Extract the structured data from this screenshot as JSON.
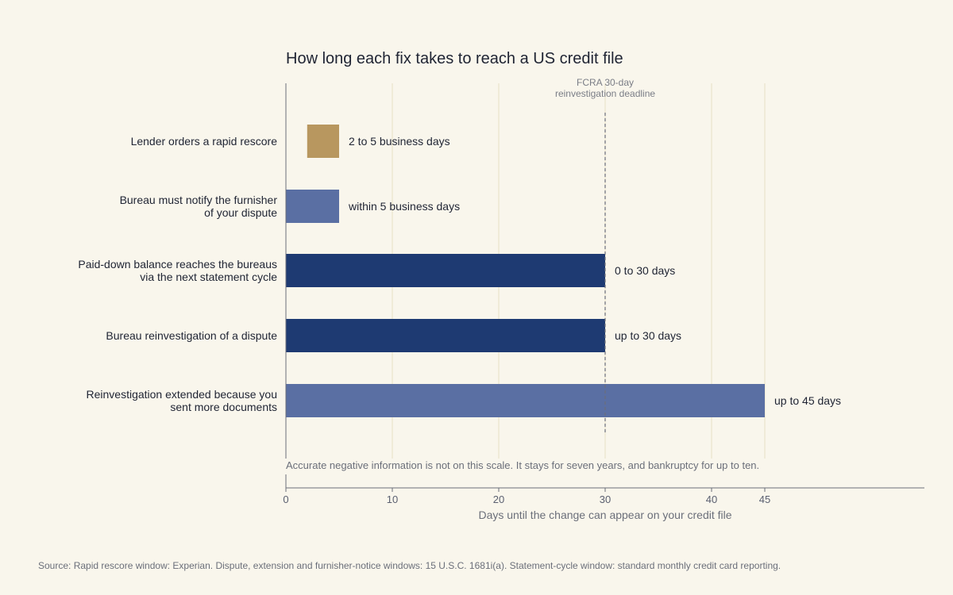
{
  "chart_data": {
    "type": "bar",
    "orientation": "horizontal",
    "title": "How long each fix takes to reach a US credit file",
    "xlabel": "Days until the change can appear on your credit file",
    "xlim": [
      0,
      60
    ],
    "xticks": [
      0,
      10,
      20,
      30,
      40,
      45
    ],
    "grid": true,
    "categories": [
      [
        "Lender orders a rapid rescore"
      ],
      [
        "Bureau must notify the furnisher",
        "of your dispute"
      ],
      [
        "Paid-down balance reaches the bureaus",
        "via the next statement cycle"
      ],
      [
        "Bureau reinvestigation of a dispute"
      ],
      [
        "Reinvestigation extended because you",
        "sent more documents"
      ]
    ],
    "ranges": [
      [
        2,
        5
      ],
      [
        0,
        5
      ],
      [
        0,
        30
      ],
      [
        0,
        30
      ],
      [
        0,
        45
      ]
    ],
    "value_labels": [
      "2 to 5 business days",
      "within 5 business days",
      "0 to 30 days",
      "up to 30 days",
      "up to 45 days"
    ],
    "bar_colors": [
      "#b8975f",
      "#5a6fa3",
      "#1e3a72",
      "#1e3a72",
      "#5a6fa3"
    ],
    "reference_line": {
      "x": 30,
      "label": [
        "FCRA 30-day",
        "reinvestigation deadline"
      ]
    },
    "note": "Accurate negative information is not on this scale. It stays for seven years, and bankruptcy for up to ten."
  },
  "source": "Source: Rapid rescore window: Experian. Dispute, extension and furnisher-notice windows: 15 U.S.C. 1681i(a). Statement-cycle window: standard monthly credit card reporting."
}
